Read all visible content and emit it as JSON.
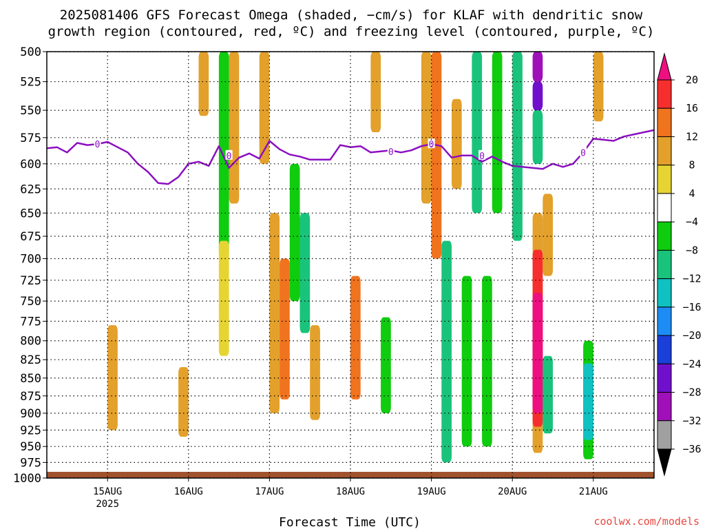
{
  "chart_data": {
    "type": "heatmap",
    "title_line1": "2025081406 GFS Forecast Omega (shaded, −cm/s) for KLAF with dendritic snow",
    "title_line2": "growth region (contoured, red, ºC) and freezing level (contoured, purple, ºC)",
    "xlabel": "Forecast Time (UTC)",
    "ylabel": "",
    "credit": "coolwx.com/models",
    "grid": true,
    "legend": "colorbar-right",
    "y_axis": {
      "ticks": [
        500,
        525,
        550,
        575,
        600,
        625,
        650,
        675,
        700,
        725,
        750,
        775,
        800,
        825,
        850,
        875,
        900,
        925,
        950,
        975,
        1000
      ],
      "range": [
        500,
        1000
      ],
      "inverted": true,
      "scale": "log-pressure"
    },
    "x_axis": {
      "range": [
        "2025-08-14T06:00Z",
        "2025-08-21T18:00Z"
      ],
      "ticks": [
        {
          "time": "2025-08-15T00:00Z",
          "label": "15AUG",
          "sublabel": "2025"
        },
        {
          "time": "2025-08-16T00:00Z",
          "label": "16AUG",
          "sublabel": ""
        },
        {
          "time": "2025-08-17T00:00Z",
          "label": "17AUG",
          "sublabel": ""
        },
        {
          "time": "2025-08-18T00:00Z",
          "label": "18AUG",
          "sublabel": ""
        },
        {
          "time": "2025-08-19T00:00Z",
          "label": "19AUG",
          "sublabel": ""
        },
        {
          "time": "2025-08-20T00:00Z",
          "label": "20AUG",
          "sublabel": ""
        },
        {
          "time": "2025-08-21T00:00Z",
          "label": "21AUG",
          "sublabel": ""
        }
      ]
    },
    "colorbar": {
      "labels": [
        "20",
        "16",
        "12",
        "8",
        "4",
        "−4",
        "−8",
        "−12",
        "−16",
        "−20",
        "−24",
        "−28",
        "−32",
        "−36"
      ],
      "colors": [
        "#ee0f80",
        "#f72e2e",
        "#f0731e",
        "#e3a02b",
        "#e6d433",
        "#ffffff",
        "#0fcc0f",
        "#1ac37b",
        "#0fc1c1",
        "#1e8cf5",
        "#1b3fd9",
        "#7010cc",
        "#a010b8",
        "#a0a0a0",
        "#000000"
      ]
    },
    "freezing_level": {
      "label": "0",
      "color": "#8b0fc0",
      "points": [
        [
          "2025-08-14T06:00Z",
          585
        ],
        [
          "2025-08-14T09:00Z",
          584
        ],
        [
          "2025-08-14T12:00Z",
          589
        ],
        [
          "2025-08-14T15:00Z",
          580
        ],
        [
          "2025-08-14T18:00Z",
          582
        ],
        [
          "2025-08-14T21:00Z",
          581
        ],
        [
          "2025-08-15T00:00Z",
          579
        ],
        [
          "2025-08-15T03:00Z",
          584
        ],
        [
          "2025-08-15T06:00Z",
          589
        ],
        [
          "2025-08-15T09:00Z",
          600
        ],
        [
          "2025-08-15T12:00Z",
          608
        ],
        [
          "2025-08-15T15:00Z",
          619
        ],
        [
          "2025-08-15T18:00Z",
          620
        ],
        [
          "2025-08-15T21:00Z",
          613
        ],
        [
          "2025-08-16T00:00Z",
          600
        ],
        [
          "2025-08-16T03:00Z",
          598
        ],
        [
          "2025-08-16T06:00Z",
          602
        ],
        [
          "2025-08-16T09:00Z",
          583
        ],
        [
          "2025-08-16T12:00Z",
          604
        ],
        [
          "2025-08-16T15:00Z",
          594
        ],
        [
          "2025-08-16T18:00Z",
          590
        ],
        [
          "2025-08-16T21:00Z",
          595
        ],
        [
          "2025-08-17T00:00Z",
          578
        ],
        [
          "2025-08-17T03:00Z",
          586
        ],
        [
          "2025-08-17T06:00Z",
          591
        ],
        [
          "2025-08-17T09:00Z",
          593
        ],
        [
          "2025-08-17T12:00Z",
          596
        ],
        [
          "2025-08-17T15:00Z",
          596
        ],
        [
          "2025-08-17T18:00Z",
          596
        ],
        [
          "2025-08-17T21:00Z",
          582
        ],
        [
          "2025-08-18T00:00Z",
          584
        ],
        [
          "2025-08-18T03:00Z",
          583
        ],
        [
          "2025-08-18T06:00Z",
          589
        ],
        [
          "2025-08-18T09:00Z",
          588
        ],
        [
          "2025-08-18T12:00Z",
          587
        ],
        [
          "2025-08-18T15:00Z",
          589
        ],
        [
          "2025-08-18T18:00Z",
          587
        ],
        [
          "2025-08-18T21:00Z",
          583
        ],
        [
          "2025-08-19T00:00Z",
          581
        ],
        [
          "2025-08-19T03:00Z",
          583
        ],
        [
          "2025-08-19T06:00Z",
          594
        ],
        [
          "2025-08-19T09:00Z",
          592
        ],
        [
          "2025-08-19T12:00Z",
          592
        ],
        [
          "2025-08-19T15:00Z",
          598
        ],
        [
          "2025-08-19T18:00Z",
          593
        ],
        [
          "2025-08-19T21:00Z",
          598
        ],
        [
          "2025-08-20T00:00Z",
          602
        ],
        [
          "2025-08-20T03:00Z",
          603
        ],
        [
          "2025-08-20T06:00Z",
          604
        ],
        [
          "2025-08-20T09:00Z",
          605
        ],
        [
          "2025-08-20T12:00Z",
          600
        ],
        [
          "2025-08-20T15:00Z",
          603
        ],
        [
          "2025-08-20T18:00Z",
          600
        ],
        [
          "2025-08-20T21:00Z",
          589
        ],
        [
          "2025-08-21T00:00Z",
          576
        ],
        [
          "2025-08-21T03:00Z",
          577
        ],
        [
          "2025-08-21T06:00Z",
          578
        ],
        [
          "2025-08-21T09:00Z",
          574
        ],
        [
          "2025-08-21T12:00Z",
          572
        ],
        [
          "2025-08-21T15:00Z",
          570
        ],
        [
          "2025-08-21T18:00Z",
          568
        ]
      ],
      "contour_labels": [
        [
          "2025-08-14T21:00Z",
          581
        ],
        [
          "2025-08-16T12:00Z",
          592
        ],
        [
          "2025-08-18T12:00Z",
          588
        ],
        [
          "2025-08-19T00:00Z",
          581
        ],
        [
          "2025-08-19T15:00Z",
          592
        ],
        [
          "2025-08-20T21:00Z",
          589
        ]
      ]
    },
    "omega_cells": [
      {
        "t0": "2025-08-15T00:00Z",
        "t1": "2025-08-15T03:00Z",
        "p0": 780,
        "p1": 925,
        "value": 6
      },
      {
        "t0": "2025-08-15T21:00Z",
        "t1": "2025-08-16T00:00Z",
        "p0": 835,
        "p1": 935,
        "value": 6
      },
      {
        "t0": "2025-08-16T03:00Z",
        "t1": "2025-08-16T06:00Z",
        "p0": 500,
        "p1": 555,
        "value": 6
      },
      {
        "t0": "2025-08-16T09:00Z",
        "t1": "2025-08-16T12:00Z",
        "p0": 500,
        "p1": 700,
        "value": -8
      },
      {
        "t0": "2025-08-16T09:00Z",
        "t1": "2025-08-16T12:00Z",
        "p0": 680,
        "p1": 820,
        "value": 5
      },
      {
        "t0": "2025-08-16T12:00Z",
        "t1": "2025-08-16T15:00Z",
        "p0": 500,
        "p1": 640,
        "value": 6
      },
      {
        "t0": "2025-08-16T21:00Z",
        "t1": "2025-08-17T00:00Z",
        "p0": 500,
        "p1": 600,
        "value": 6
      },
      {
        "t0": "2025-08-17T00:00Z",
        "t1": "2025-08-17T03:00Z",
        "p0": 650,
        "p1": 900,
        "value": 6
      },
      {
        "t0": "2025-08-17T03:00Z",
        "t1": "2025-08-17T06:00Z",
        "p0": 700,
        "p1": 880,
        "value": 10
      },
      {
        "t0": "2025-08-17T06:00Z",
        "t1": "2025-08-17T09:00Z",
        "p0": 600,
        "p1": 750,
        "value": -8
      },
      {
        "t0": "2025-08-17T09:00Z",
        "t1": "2025-08-17T12:00Z",
        "p0": 650,
        "p1": 790,
        "value": -12
      },
      {
        "t0": "2025-08-17T12:00Z",
        "t1": "2025-08-17T15:00Z",
        "p0": 780,
        "p1": 910,
        "value": 6
      },
      {
        "t0": "2025-08-18T00:00Z",
        "t1": "2025-08-18T03:00Z",
        "p0": 720,
        "p1": 880,
        "value": 10
      },
      {
        "t0": "2025-08-18T06:00Z",
        "t1": "2025-08-18T09:00Z",
        "p0": 500,
        "p1": 570,
        "value": 6
      },
      {
        "t0": "2025-08-18T09:00Z",
        "t1": "2025-08-18T12:00Z",
        "p0": 770,
        "p1": 900,
        "value": -8
      },
      {
        "t0": "2025-08-18T21:00Z",
        "t1": "2025-08-19T00:00Z",
        "p0": 500,
        "p1": 640,
        "value": 6
      },
      {
        "t0": "2025-08-19T00:00Z",
        "t1": "2025-08-19T03:00Z",
        "p0": 500,
        "p1": 700,
        "value": 10
      },
      {
        "t0": "2025-08-19T03:00Z",
        "t1": "2025-08-19T06:00Z",
        "p0": 680,
        "p1": 975,
        "value": -12
      },
      {
        "t0": "2025-08-19T06:00Z",
        "t1": "2025-08-19T09:00Z",
        "p0": 540,
        "p1": 625,
        "value": 8
      },
      {
        "t0": "2025-08-19T09:00Z",
        "t1": "2025-08-19T12:00Z",
        "p0": 720,
        "p1": 950,
        "value": -8
      },
      {
        "t0": "2025-08-19T12:00Z",
        "t1": "2025-08-19T15:00Z",
        "p0": 500,
        "p1": 650,
        "value": -12
      },
      {
        "t0": "2025-08-19T15:00Z",
        "t1": "2025-08-19T18:00Z",
        "p0": 720,
        "p1": 950,
        "value": -8
      },
      {
        "t0": "2025-08-19T18:00Z",
        "t1": "2025-08-19T21:00Z",
        "p0": 500,
        "p1": 650,
        "value": -8
      },
      {
        "t0": "2025-08-20T00:00Z",
        "t1": "2025-08-20T03:00Z",
        "p0": 500,
        "p1": 680,
        "value": -12
      },
      {
        "t0": "2025-08-20T06:00Z",
        "t1": "2025-08-20T09:00Z",
        "p0": 500,
        "p1": 525,
        "value": -32
      },
      {
        "t0": "2025-08-20T06:00Z",
        "t1": "2025-08-20T09:00Z",
        "p0": 525,
        "p1": 550,
        "value": -28
      },
      {
        "t0": "2025-08-20T06:00Z",
        "t1": "2025-08-20T09:00Z",
        "p0": 550,
        "p1": 600,
        "value": -12
      },
      {
        "t0": "2025-08-20T06:00Z",
        "t1": "2025-08-20T09:00Z",
        "p0": 650,
        "p1": 960,
        "value": 8
      },
      {
        "t0": "2025-08-20T06:00Z",
        "t1": "2025-08-20T09:00Z",
        "p0": 690,
        "p1": 920,
        "value": 16
      },
      {
        "t0": "2025-08-20T06:00Z",
        "t1": "2025-08-20T09:00Z",
        "p0": 740,
        "p1": 900,
        "value": 20
      },
      {
        "t0": "2025-08-20T09:00Z",
        "t1": "2025-08-20T12:00Z",
        "p0": 630,
        "p1": 720,
        "value": 8
      },
      {
        "t0": "2025-08-20T09:00Z",
        "t1": "2025-08-20T12:00Z",
        "p0": 820,
        "p1": 930,
        "value": -12
      },
      {
        "t0": "2025-08-20T21:00Z",
        "t1": "2025-08-21T00:00Z",
        "p0": 800,
        "p1": 970,
        "value": -8
      },
      {
        "t0": "2025-08-20T21:00Z",
        "t1": "2025-08-21T00:00Z",
        "p0": 830,
        "p1": 940,
        "value": -16
      },
      {
        "t0": "2025-08-21T00:00Z",
        "t1": "2025-08-21T03:00Z",
        "p0": 500,
        "p1": 560,
        "value": 8
      }
    ],
    "terrain": {
      "surface_pressure": 990,
      "color": "#a0522d"
    }
  }
}
